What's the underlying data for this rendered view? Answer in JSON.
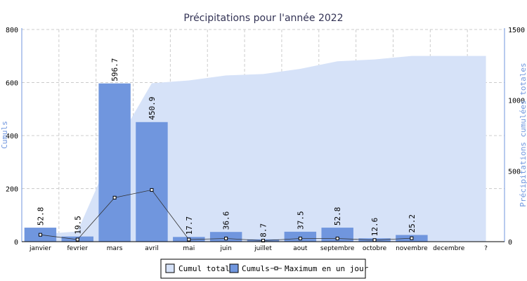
{
  "chart_data": {
    "type": "bar",
    "title": "Précipitations pour l'année 2022",
    "ylabel": "Cumuls",
    "y2label": "Précipitations cumulées totales",
    "categories": [
      "janvier",
      "fevrier",
      "mars",
      "avril",
      "mai",
      "juin",
      "juillet",
      "aout",
      "septembre",
      "octobre",
      "novembre",
      "decembre",
      "?"
    ],
    "ylim": [
      0,
      800
    ],
    "y2lim": [
      0,
      1500
    ],
    "yticks": [
      "0",
      "200",
      "400",
      "600",
      "800"
    ],
    "y2ticks": [
      "0",
      "500",
      "1000",
      "1500"
    ],
    "grid": true,
    "legend_position": "bottom-center",
    "series": [
      {
        "name": "Cumul total",
        "kind": "area",
        "axis": "right",
        "color": "#d6e2f8",
        "values": [
          53,
          72,
          670,
          1120,
          1140,
          1175,
          1185,
          1222,
          1275,
          1288,
          1313,
          1313,
          1313
        ]
      },
      {
        "name": "Cumuls",
        "kind": "bar",
        "axis": "left",
        "color": "#7096de",
        "values": [
          52.8,
          19.5,
          596.7,
          450.9,
          17.7,
          36.6,
          8.7,
          37.5,
          52.8,
          12.6,
          25.2,
          null,
          null
        ],
        "labels": [
          "52.8",
          "19.5",
          "596.7",
          "450.9",
          "17.7",
          "36.6",
          "8.7",
          "37.5",
          "52.8",
          "12.6",
          "25.2",
          "",
          ""
        ]
      },
      {
        "name": "Maximum en un jour",
        "kind": "line",
        "axis": "left",
        "color": "#333333",
        "values": [
          26,
          8,
          166,
          195,
          8,
          12,
          4,
          12,
          12,
          6,
          13,
          null,
          null
        ]
      }
    ]
  }
}
